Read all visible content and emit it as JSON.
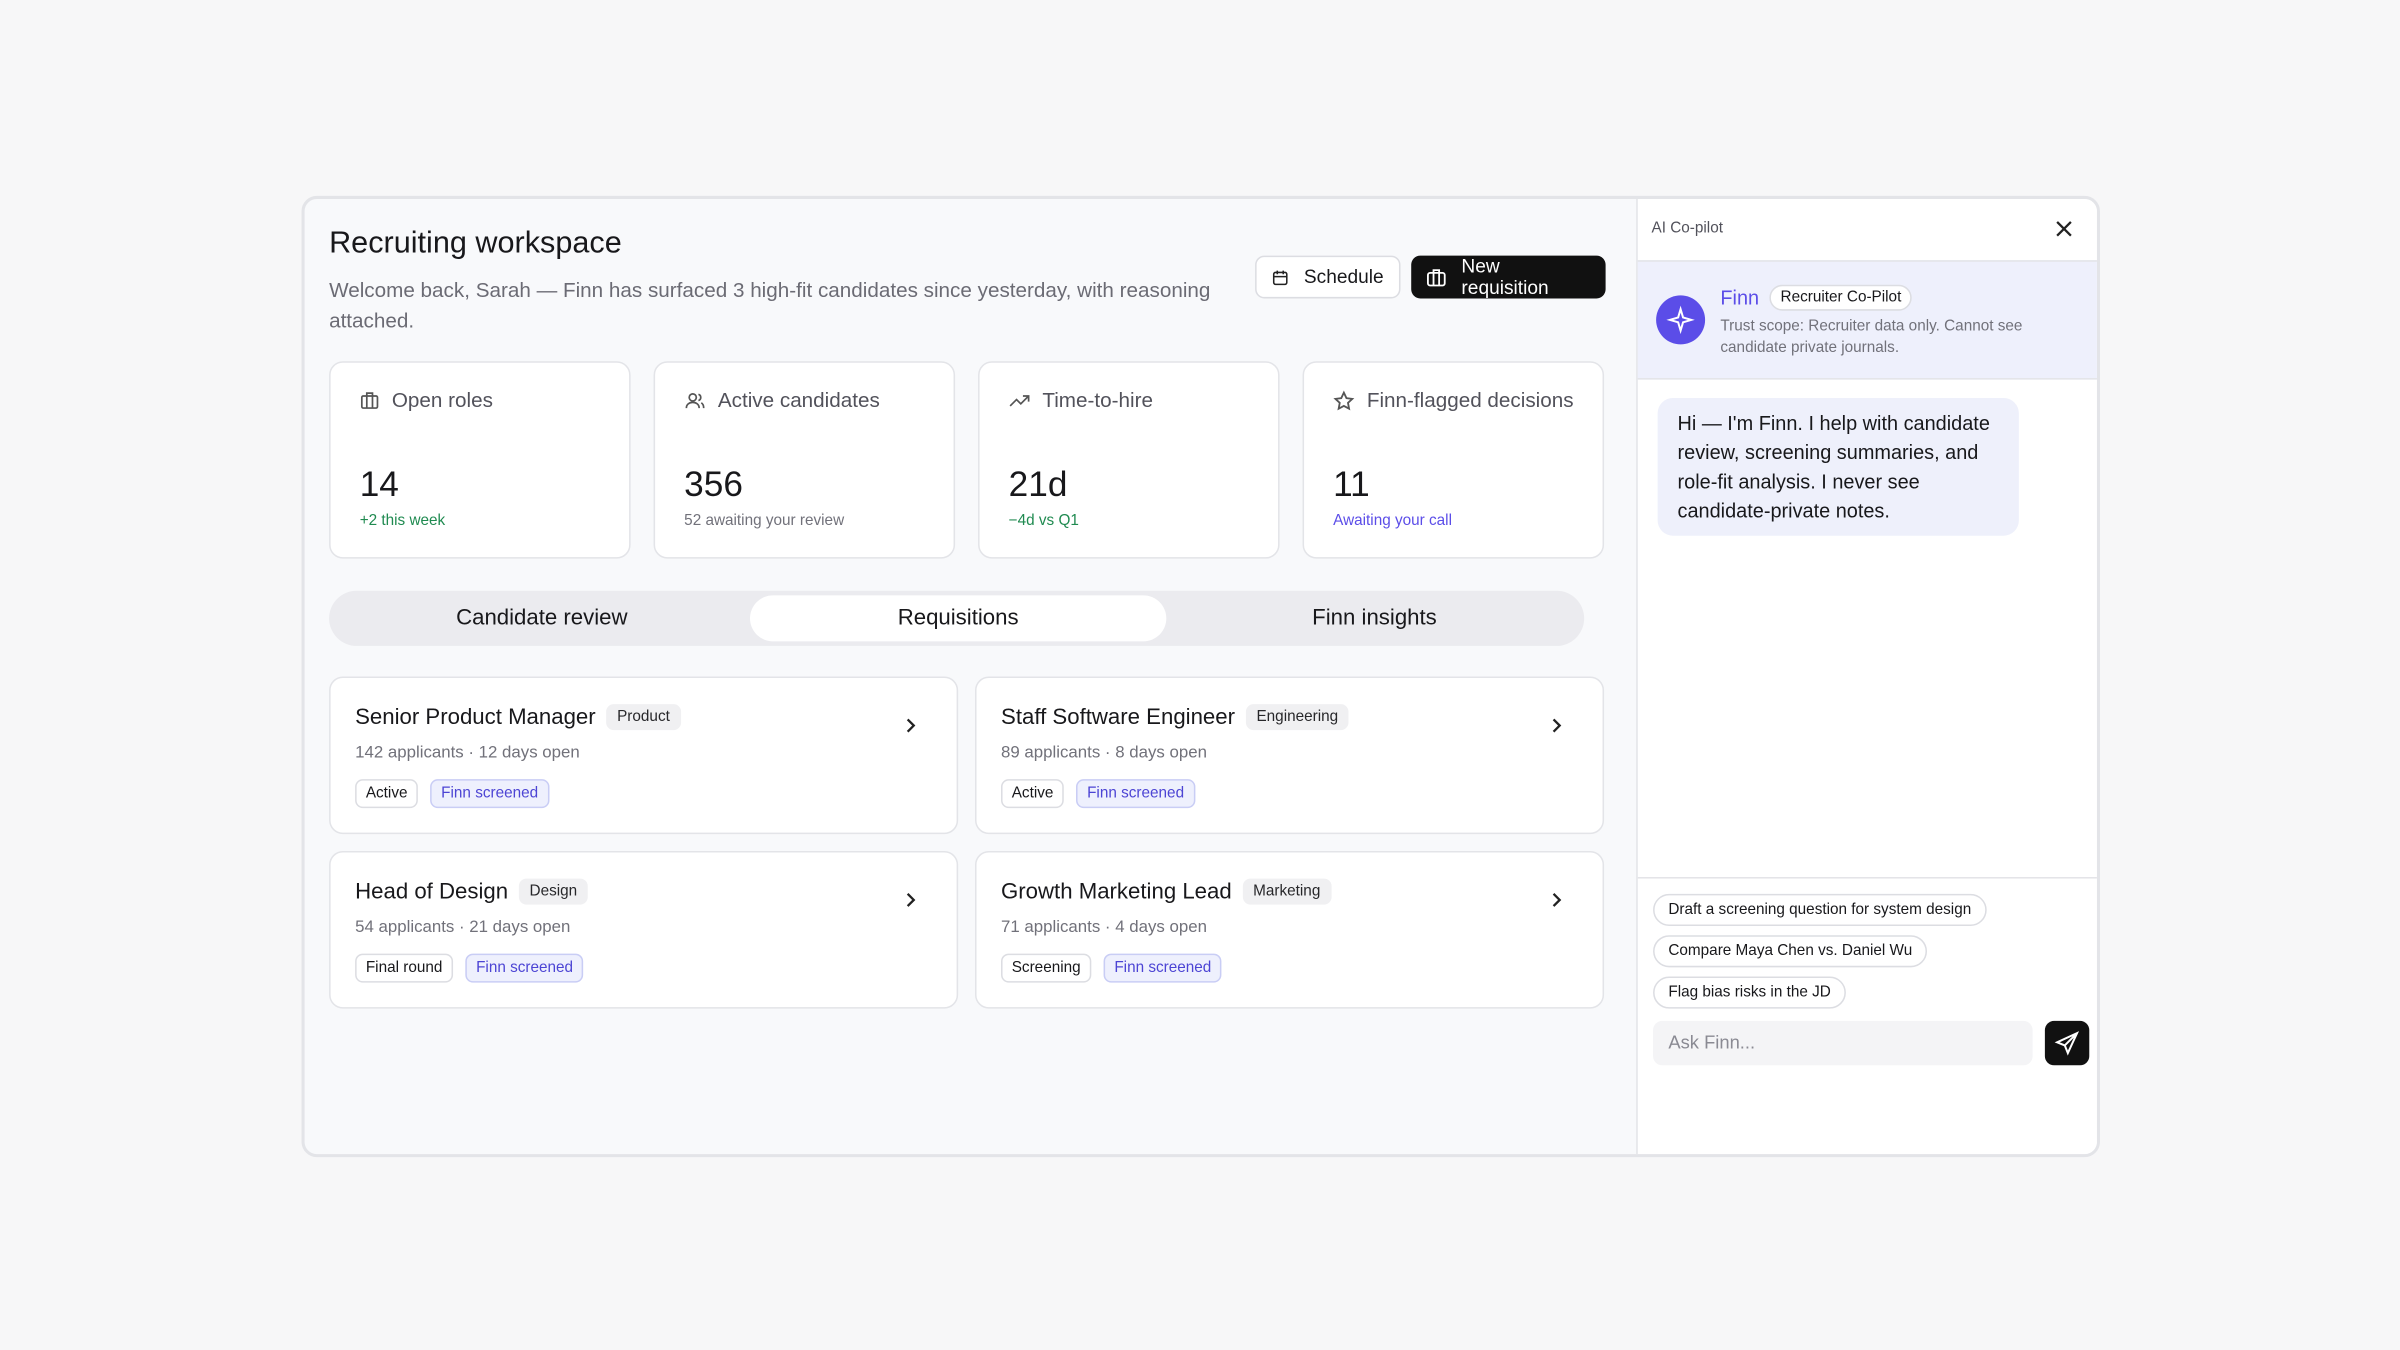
{
  "header": {
    "title": "Recruiting workspace",
    "subtitle": "Welcome back, Sarah — Finn has surfaced 3 high-fit candidates since yesterday, with reasoning attached.",
    "buttons": [
      "Schedule",
      "New requisition"
    ]
  },
  "stats": [
    {
      "label": "Open roles",
      "value": "14",
      "note": "+2 this week"
    },
    {
      "label": "Active candidates",
      "value": "356",
      "note": "52 awaiting your review"
    },
    {
      "label": "Time-to-hire",
      "value": "21d",
      "note": "−4d vs Q1"
    },
    {
      "label": "Finn-flagged decisions",
      "value": "11",
      "note": "Awaiting your call"
    }
  ],
  "tabs": [
    "Candidate review",
    "Requisitions",
    "Finn insights"
  ],
  "requisitions": [
    {
      "title": "Senior Product Manager",
      "department": "Product",
      "meta": "142 applicants · 12 days open",
      "tags": [
        "Active",
        "Finn screened"
      ]
    },
    {
      "title": "Staff Software Engineer",
      "department": "Engineering",
      "meta": "89 applicants · 8 days open",
      "tags": [
        "Active",
        "Finn screened"
      ]
    },
    {
      "title": "Head of Design",
      "department": "Design",
      "meta": "54 applicants · 21 days open",
      "tags": [
        "Final round",
        "Finn screened"
      ]
    },
    {
      "title": "Growth Marketing Lead",
      "department": "Marketing",
      "meta": "71 applicants · 4 days open",
      "tags": [
        "Screening",
        "Finn screened"
      ]
    }
  ],
  "copilot": {
    "label": "AI Co-pilot",
    "name": "Finn",
    "role": "Recruiter Co-Pilot",
    "scope": "Trust scope: Recruiter data only. Cannot see candidate private journals.",
    "message": "Hi — I'm Finn. I help with candidate review, screening summaries, and role-fit analysis. I never see candidate-private notes.",
    "suggestions": [
      "Draft a screening question for system design",
      "Compare Maya Chen vs. Daniel Wu",
      "Flag bias risks in the JD"
    ],
    "placeholder": "Ask Finn..."
  }
}
